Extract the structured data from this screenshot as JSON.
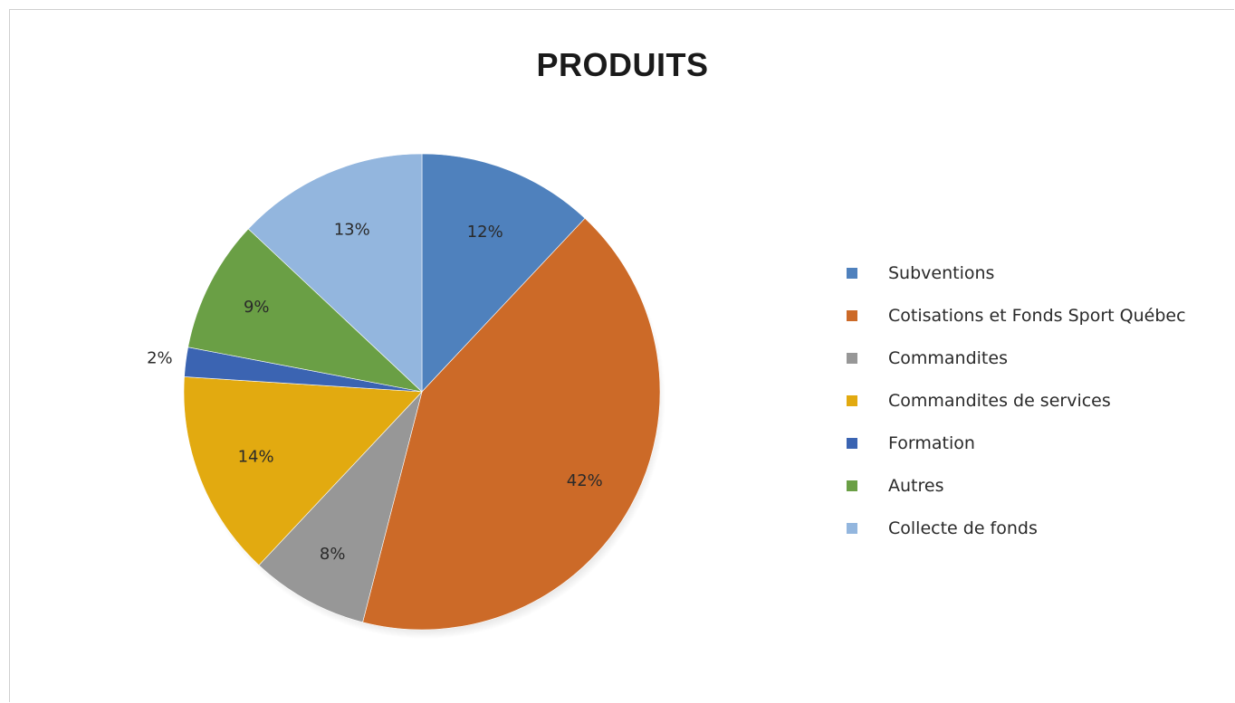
{
  "chart_data": {
    "type": "pie",
    "title": "PRODUITS",
    "legend_position": "right",
    "slices": [
      {
        "name": "Subventions",
        "value": 12,
        "label": "12%",
        "color": "#4f81bd"
      },
      {
        "name": "Cotisations et Fonds Sport Québec",
        "value": 42,
        "label": "42%",
        "color": "#cc6a28"
      },
      {
        "name": "Commandites",
        "value": 8,
        "label": "8%",
        "color": "#979797"
      },
      {
        "name": "Commandites de services",
        "value": 14,
        "label": "14%",
        "color": "#e2aa10"
      },
      {
        "name": "Formation",
        "value": 2,
        "label": "2%",
        "color": "#3b64b2"
      },
      {
        "name": "Autres",
        "value": 9,
        "label": "9%",
        "color": "#6a9f45"
      },
      {
        "name": "Collecte de fonds",
        "value": 13,
        "label": "13%",
        "color": "#93b6de"
      }
    ]
  }
}
